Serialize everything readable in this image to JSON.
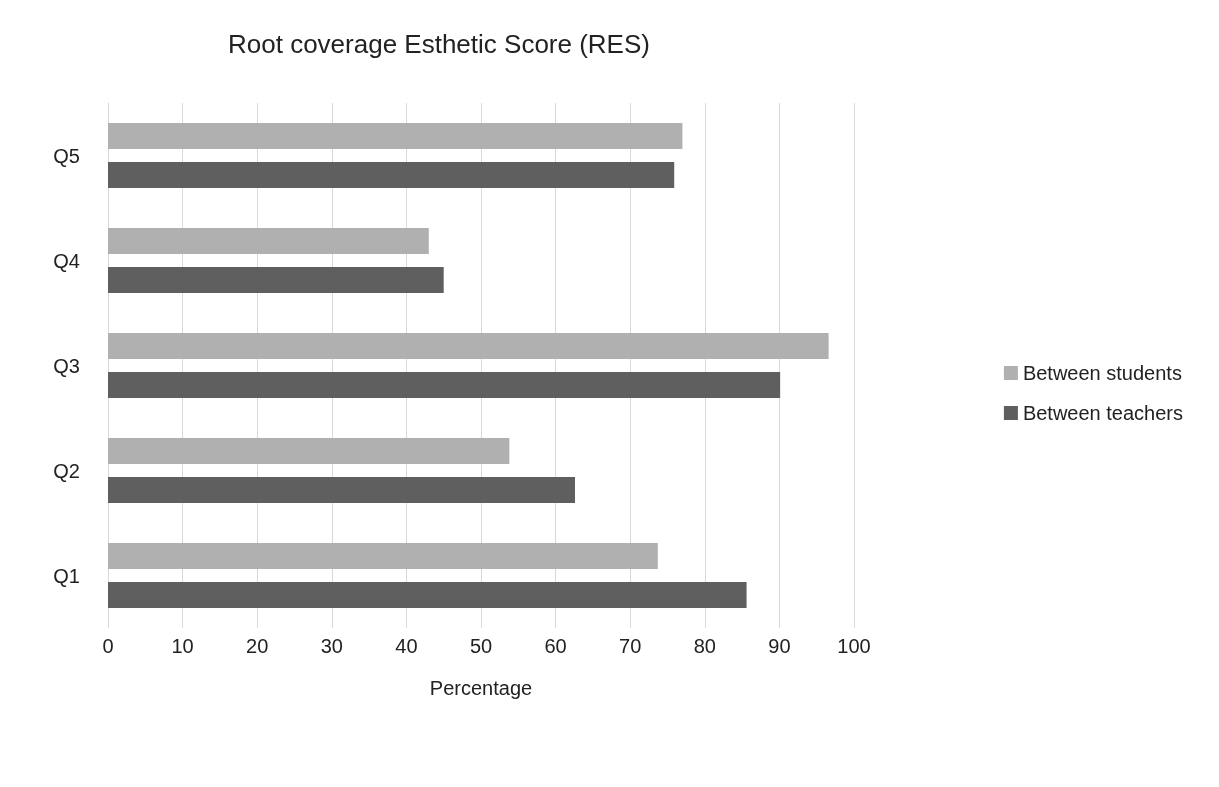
{
  "chart_data": {
    "type": "bar",
    "orientation": "horizontal",
    "title": "Root coverage Esthetic Score (RES)",
    "xlabel": "Percentage",
    "categories": [
      "Q5",
      "Q4",
      "Q3",
      "Q2",
      "Q1"
    ],
    "series": [
      {
        "name": "Between students",
        "color": "#b0b0b0",
        "values": [
          77,
          43,
          96.6,
          53.8,
          73.7
        ]
      },
      {
        "name": "Between teachers",
        "color": "#5f5f5f",
        "values": [
          75.9,
          45,
          90.1,
          62.6,
          85.6
        ]
      }
    ],
    "xlim": [
      0,
      100
    ],
    "xticks": [
      0,
      10,
      20,
      30,
      40,
      50,
      60,
      70,
      80,
      90,
      100
    ],
    "grid": "x",
    "legend": "right"
  }
}
